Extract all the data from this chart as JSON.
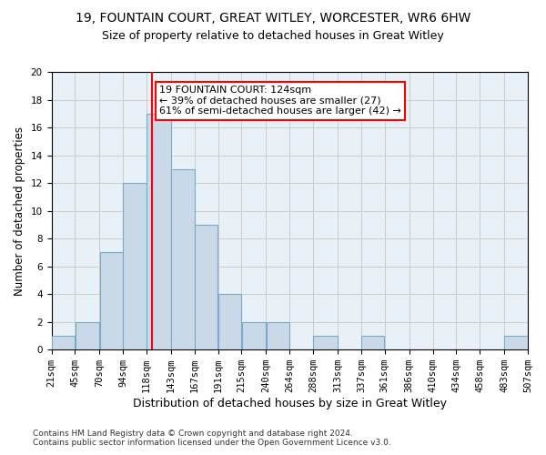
{
  "title_line1": "19, FOUNTAIN COURT, GREAT WITLEY, WORCESTER, WR6 6HW",
  "title_line2": "Size of property relative to detached houses in Great Witley",
  "xlabel": "Distribution of detached houses by size in Great Witley",
  "ylabel": "Number of detached properties",
  "bin_edges": [
    21,
    45,
    70,
    94,
    118,
    143,
    167,
    191,
    215,
    240,
    264,
    288,
    313,
    337,
    361,
    386,
    410,
    434,
    458,
    483,
    507
  ],
  "counts": [
    1,
    2,
    7,
    12,
    17,
    13,
    9,
    4,
    2,
    2,
    0,
    1,
    0,
    1,
    0,
    0,
    0,
    0,
    0,
    1
  ],
  "bar_facecolor": "#c9d9e8",
  "bar_edgecolor": "#7aaac8",
  "reference_line_x": 124,
  "annotation_text": "19 FOUNTAIN COURT: 124sqm\n← 39% of detached houses are smaller (27)\n61% of semi-detached houses are larger (42) →",
  "annotation_box_color": "white",
  "annotation_box_edgecolor": "red",
  "ref_line_color": "red",
  "ylim": [
    0,
    20
  ],
  "yticks": [
    0,
    2,
    4,
    6,
    8,
    10,
    12,
    14,
    16,
    18,
    20
  ],
  "grid_color": "#cccccc",
  "bg_color": "#e8f0f8",
  "footnote1": "Contains HM Land Registry data © Crown copyright and database right 2024.",
  "footnote2": "Contains public sector information licensed under the Open Government Licence v3.0.",
  "title_fontsize": 10,
  "subtitle_fontsize": 9,
  "xlabel_fontsize": 9,
  "ylabel_fontsize": 8.5,
  "tick_fontsize": 7.5,
  "footnote_fontsize": 6.5,
  "annotation_fontsize": 8
}
